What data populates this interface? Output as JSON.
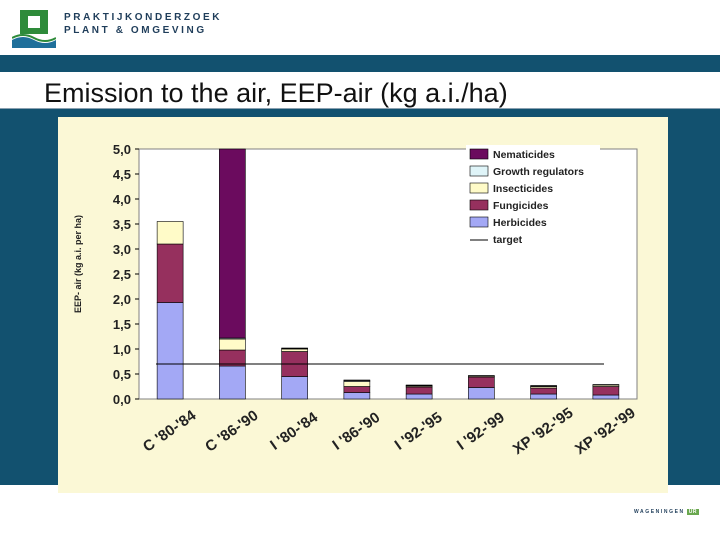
{
  "header": {
    "org_line1": "PRAKTIJKONDERZOEK",
    "org_line2": "PLANT & OMGEVING"
  },
  "slide": {
    "title": "Emission to the air, EEP-air (kg a.i./ha)"
  },
  "footer": {
    "brand": "WAGENINGEN",
    "tag": "UR"
  },
  "colors": {
    "band": "#12516f",
    "plot_bg": "#fbf8d6",
    "Nematicides": "#6b0b5e",
    "Growth regulators": "#dff4f8",
    "Insecticides": "#fffbc8",
    "Fungicides": "#96305e",
    "Herbicides": "#a3a8f5"
  },
  "chart_data": {
    "type": "bar",
    "stacked": true,
    "ylabel": "EEP- air (kg a.i. per ha)",
    "ylim": [
      0,
      5
    ],
    "yticks": [
      "0,0",
      "0,5",
      "1,0",
      "1,5",
      "2,0",
      "2,5",
      "3,0",
      "3,5",
      "4,0",
      "4,5",
      "5,0"
    ],
    "categories": [
      "C '80-'84",
      "C '86-'90",
      "I '80-'84",
      "I '86-'90",
      "I '92-'95",
      "I '92-'99",
      "XP '92-'95",
      "XP '92-'99"
    ],
    "series": [
      {
        "name": "Herbicides",
        "values": [
          1.93,
          0.66,
          0.45,
          0.13,
          0.1,
          0.23,
          0.1,
          0.08
        ]
      },
      {
        "name": "Fungicides",
        "values": [
          1.17,
          0.32,
          0.5,
          0.12,
          0.14,
          0.21,
          0.12,
          0.17
        ]
      },
      {
        "name": "Insecticides",
        "values": [
          0.45,
          0.22,
          0.05,
          0.1,
          0.02,
          0.02,
          0.03,
          0.03
        ]
      },
      {
        "name": "Growth regulators",
        "values": [
          0.0,
          0.02,
          0.01,
          0.02,
          0.01,
          0.0,
          0.01,
          0.0
        ]
      },
      {
        "name": "Nematicides",
        "values": [
          0.0,
          3.78,
          0.01,
          0.01,
          0.01,
          0.01,
          0.01,
          0.01
        ]
      }
    ],
    "legend": [
      "Nematicides",
      "Growth regulators",
      "Insecticides",
      "Fungicides",
      "Herbicides",
      "target"
    ],
    "legend_position": "top-right",
    "target": {
      "name": "target",
      "value": 0.7
    },
    "grid": false
  }
}
